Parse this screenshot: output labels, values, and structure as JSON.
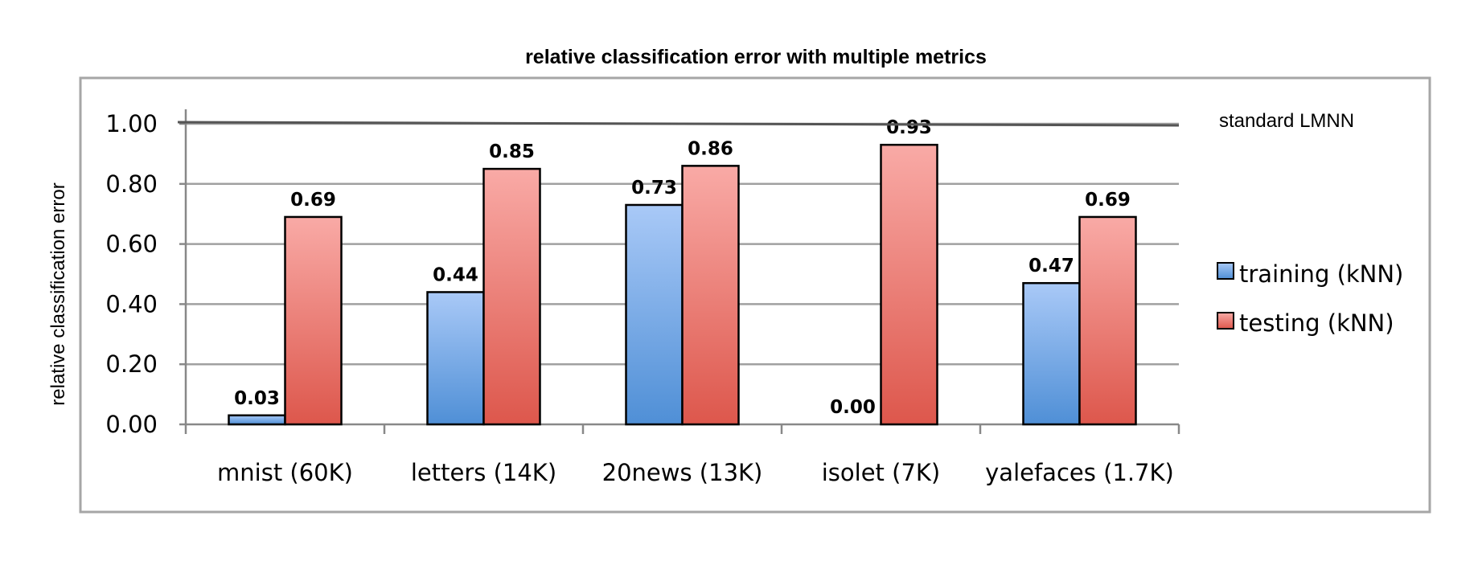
{
  "chart_data": {
    "type": "bar",
    "title": "relative classification error with multiple metrics",
    "xlabel": "",
    "ylabel": "relative classification error",
    "ylim": [
      0,
      1.0
    ],
    "yticks": [
      "0.00",
      "0.20",
      "0.40",
      "0.60",
      "0.80",
      "1.00"
    ],
    "categories": [
      "mnist (60K)",
      "letters (14K)",
      "20news (13K)",
      "isolet (7K)",
      "yalefaces (1.7K)"
    ],
    "series": [
      {
        "name": "training (kNN)",
        "values": [
          0.03,
          0.44,
          0.73,
          0.0,
          0.47
        ],
        "labels": [
          "0.03",
          "0.44",
          "0.73",
          "0.00",
          "0.47"
        ],
        "color_top": "#a9c9f7",
        "color_bottom": "#4f8fd6"
      },
      {
        "name": "testing (kNN)",
        "values": [
          0.69,
          0.85,
          0.86,
          0.93,
          0.69
        ],
        "labels": [
          "0.69",
          "0.85",
          "0.86",
          "0.93",
          "0.69"
        ],
        "color_top": "#f9aaa6",
        "color_bottom": "#dd574c"
      }
    ],
    "reference_line": {
      "value": 1.0,
      "label": "standard LMNN"
    },
    "grid": true,
    "legend_position": "right"
  }
}
